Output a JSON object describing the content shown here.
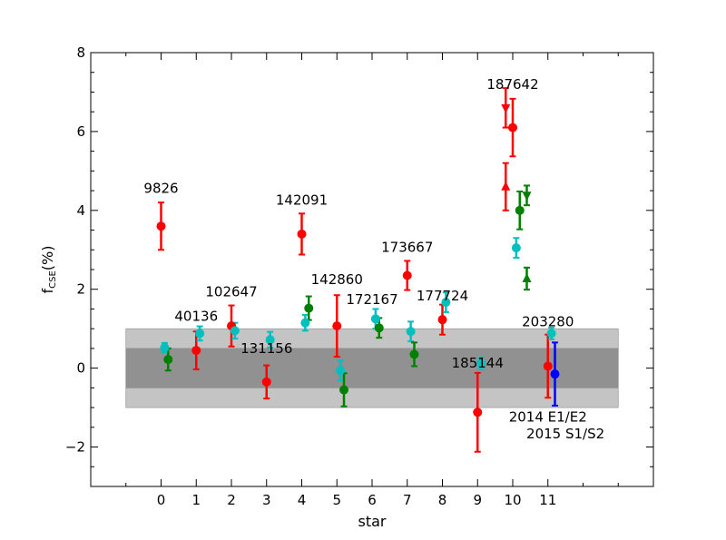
{
  "chart_data": {
    "type": "scatter",
    "title": "",
    "xlabel": "star",
    "ylabel_main": "f",
    "ylabel_sub": "CSE",
    "ylabel_unit": "(%)",
    "xlim": [
      -2,
      14
    ],
    "ylim": [
      -3,
      8
    ],
    "xticks": [
      0,
      1,
      2,
      3,
      4,
      5,
      6,
      7,
      8,
      9,
      10,
      11
    ],
    "yticks": [
      -2,
      0,
      2,
      4,
      6,
      8
    ],
    "ytick_labels": [
      "−2",
      "0",
      "2",
      "4",
      "6",
      "8"
    ],
    "grid": false,
    "bands": [
      {
        "ymin": -1.0,
        "ymax": 1.0,
        "color": "#c4c4c4",
        "xmin": -1,
        "xmax": 13
      },
      {
        "ymin": -0.5,
        "ymax": 0.5,
        "color": "#919191",
        "xmin": -1,
        "xmax": 13
      }
    ],
    "colors": {
      "red": "#ff0000",
      "cyan": "#00bfbf",
      "green": "#008000",
      "blue": "#0000ff"
    },
    "points": [
      {
        "x": 0.0,
        "y": 3.6,
        "yerr": 0.6,
        "color": "red",
        "marker": "circle"
      },
      {
        "x": 0.1,
        "y": 0.52,
        "yerr": 0.12,
        "color": "cyan",
        "marker": "circle"
      },
      {
        "x": 0.2,
        "y": 0.22,
        "yerr": 0.28,
        "color": "green",
        "marker": "circle"
      },
      {
        "x": 1.0,
        "y": 0.45,
        "yerr": 0.48,
        "color": "red",
        "marker": "circle"
      },
      {
        "x": 1.1,
        "y": 0.88,
        "yerr": 0.18,
        "color": "cyan",
        "marker": "circle"
      },
      {
        "x": 2.0,
        "y": 1.07,
        "yerr": 0.52,
        "color": "red",
        "marker": "circle"
      },
      {
        "x": 2.1,
        "y": 0.95,
        "yerr": 0.2,
        "color": "cyan",
        "marker": "circle"
      },
      {
        "x": 3.0,
        "y": -0.35,
        "yerr": 0.42,
        "color": "red",
        "marker": "circle"
      },
      {
        "x": 3.1,
        "y": 0.72,
        "yerr": 0.2,
        "color": "cyan",
        "marker": "circle"
      },
      {
        "x": 4.0,
        "y": 3.4,
        "yerr": 0.52,
        "color": "red",
        "marker": "circle"
      },
      {
        "x": 4.1,
        "y": 1.15,
        "yerr": 0.2,
        "color": "cyan",
        "marker": "circle"
      },
      {
        "x": 4.2,
        "y": 1.52,
        "yerr": 0.3,
        "color": "green",
        "marker": "circle"
      },
      {
        "x": 5.0,
        "y": 1.07,
        "yerr": 0.78,
        "color": "red",
        "marker": "circle"
      },
      {
        "x": 5.1,
        "y": -0.06,
        "yerr": 0.25,
        "color": "cyan",
        "marker": "circle"
      },
      {
        "x": 5.2,
        "y": -0.55,
        "yerr": 0.42,
        "color": "green",
        "marker": "circle"
      },
      {
        "x": 6.1,
        "y": 1.25,
        "yerr": 0.25,
        "color": "cyan",
        "marker": "circle"
      },
      {
        "x": 6.2,
        "y": 1.02,
        "yerr": 0.25,
        "color": "green",
        "marker": "circle"
      },
      {
        "x": 7.0,
        "y": 2.35,
        "yerr": 0.37,
        "color": "red",
        "marker": "circle"
      },
      {
        "x": 7.1,
        "y": 0.93,
        "yerr": 0.25,
        "color": "cyan",
        "marker": "circle"
      },
      {
        "x": 7.2,
        "y": 0.35,
        "yerr": 0.3,
        "color": "green",
        "marker": "circle"
      },
      {
        "x": 8.0,
        "y": 1.23,
        "yerr": 0.38,
        "color": "red",
        "marker": "circle"
      },
      {
        "x": 8.1,
        "y": 1.67,
        "yerr": 0.25,
        "color": "cyan",
        "marker": "circle"
      },
      {
        "x": 9.0,
        "y": -1.12,
        "yerr": 1.0,
        "color": "red",
        "marker": "circle"
      },
      {
        "x": 9.1,
        "y": 0.12,
        "yerr": 0.15,
        "color": "cyan",
        "marker": "circle"
      },
      {
        "x": 9.8,
        "y": 6.6,
        "yerr": 0.5,
        "color": "red",
        "marker": "triangle-down"
      },
      {
        "x": 9.8,
        "y": 4.6,
        "yerr": 0.6,
        "color": "red",
        "marker": "triangle-up"
      },
      {
        "x": 10.0,
        "y": 6.1,
        "yerr": 0.73,
        "color": "red",
        "marker": "circle"
      },
      {
        "x": 10.1,
        "y": 3.05,
        "yerr": 0.25,
        "color": "cyan",
        "marker": "circle"
      },
      {
        "x": 10.2,
        "y": 4.0,
        "yerr": 0.48,
        "color": "green",
        "marker": "circle"
      },
      {
        "x": 10.4,
        "y": 4.38,
        "yerr": 0.25,
        "color": "green",
        "marker": "triangle-down"
      },
      {
        "x": 10.4,
        "y": 2.27,
        "yerr": 0.28,
        "color": "green",
        "marker": "triangle-up"
      },
      {
        "x": 11.0,
        "y": 0.05,
        "yerr": 0.8,
        "color": "red",
        "marker": "circle"
      },
      {
        "x": 11.1,
        "y": 0.88,
        "yerr": 0.15,
        "color": "cyan",
        "marker": "circle"
      },
      {
        "x": 11.2,
        "y": -0.15,
        "yerr": 0.8,
        "color": "blue",
        "marker": "circle"
      }
    ],
    "annotations": [
      {
        "text": "9826",
        "x": 0.0,
        "y": 4.45
      },
      {
        "text": "40136",
        "x": 1.0,
        "y": 1.2
      },
      {
        "text": "102647",
        "x": 2.0,
        "y": 1.82
      },
      {
        "text": "131156",
        "x": 3.0,
        "y": 0.38
      },
      {
        "text": "142091",
        "x": 4.0,
        "y": 4.14
      },
      {
        "text": "142860",
        "x": 5.0,
        "y": 2.13
      },
      {
        "text": "172167",
        "x": 6.0,
        "y": 1.62
      },
      {
        "text": "173667",
        "x": 7.0,
        "y": 2.95
      },
      {
        "text": "177724",
        "x": 8.0,
        "y": 1.72
      },
      {
        "text": "185144",
        "x": 9.0,
        "y": 0.02
      },
      {
        "text": "187642",
        "x": 10.0,
        "y": 7.08
      },
      {
        "text": "203280",
        "x": 11.0,
        "y": 1.06
      },
      {
        "text": "2014 E1/E2",
        "x": 11.0,
        "y": -1.36
      },
      {
        "text": "2015 S1/S2",
        "x": 11.5,
        "y": -1.78
      }
    ]
  }
}
